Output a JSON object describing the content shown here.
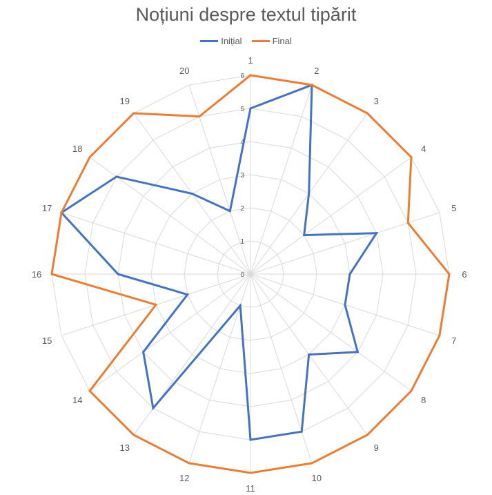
{
  "chart_data": {
    "type": "radar",
    "title": "Noțiuni despre textul tipărit",
    "categories": [
      "1",
      "2",
      "3",
      "4",
      "5",
      "6",
      "7",
      "8",
      "9",
      "10",
      "11",
      "12",
      "13",
      "14",
      "15",
      "16",
      "17",
      "18",
      "19",
      "20"
    ],
    "rlim": [
      0,
      6
    ],
    "ticks": [
      "0",
      "1",
      "2",
      "3",
      "4",
      "5",
      "6"
    ],
    "grid": true,
    "legend": "top",
    "series": [
      {
        "name": "Inițial",
        "color": "#4472C4",
        "values": [
          5,
          6,
          3,
          2,
          4,
          3,
          3,
          4,
          3,
          5,
          5,
          1,
          5,
          4,
          2,
          4,
          6,
          5,
          3,
          2
        ]
      },
      {
        "name": "Final",
        "color": "#ED7D31",
        "values": [
          6,
          6,
          6,
          6,
          5,
          6,
          6,
          6,
          6,
          6,
          6,
          6,
          6,
          6,
          3,
          6,
          6,
          6,
          6,
          5
        ]
      }
    ]
  }
}
